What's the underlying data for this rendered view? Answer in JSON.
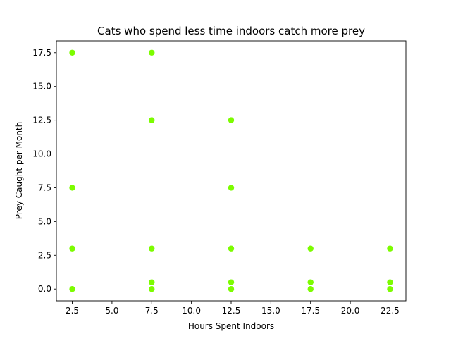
{
  "chart_data": {
    "type": "scatter",
    "title": "Cats who spend less time indoors catch more prey",
    "xlabel": "Hours Spent Indoors",
    "ylabel": "Prey Caught per Month",
    "xlim": [
      1.5,
      23.5
    ],
    "ylim": [
      -0.875,
      18.375
    ],
    "xticks": [
      2.5,
      5.0,
      7.5,
      10.0,
      12.5,
      15.0,
      17.5,
      20.0,
      22.5
    ],
    "xtick_labels": [
      "2.5",
      "5.0",
      "7.5",
      "10.0",
      "12.5",
      "15.0",
      "17.5",
      "20.0",
      "22.5"
    ],
    "yticks": [
      0.0,
      2.5,
      5.0,
      7.5,
      10.0,
      12.5,
      15.0,
      17.5
    ],
    "ytick_labels": [
      "0.0",
      "2.5",
      "5.0",
      "7.5",
      "10.0",
      "12.5",
      "15.0",
      "17.5"
    ],
    "grid": false,
    "marker_color": "#7cfc00",
    "points": [
      {
        "x": 2.5,
        "y": 17.5
      },
      {
        "x": 2.5,
        "y": 7.5
      },
      {
        "x": 2.5,
        "y": 3.0
      },
      {
        "x": 2.5,
        "y": 0.0
      },
      {
        "x": 7.5,
        "y": 17.5
      },
      {
        "x": 7.5,
        "y": 12.5
      },
      {
        "x": 7.5,
        "y": 3.0
      },
      {
        "x": 7.5,
        "y": 0.5
      },
      {
        "x": 7.5,
        "y": 0.0
      },
      {
        "x": 12.5,
        "y": 12.5
      },
      {
        "x": 12.5,
        "y": 7.5
      },
      {
        "x": 12.5,
        "y": 3.0
      },
      {
        "x": 12.5,
        "y": 0.5
      },
      {
        "x": 12.5,
        "y": 0.0
      },
      {
        "x": 17.5,
        "y": 3.0
      },
      {
        "x": 17.5,
        "y": 0.5
      },
      {
        "x": 17.5,
        "y": 0.0
      },
      {
        "x": 22.5,
        "y": 3.0
      },
      {
        "x": 22.5,
        "y": 0.5
      },
      {
        "x": 22.5,
        "y": 0.0
      }
    ]
  }
}
